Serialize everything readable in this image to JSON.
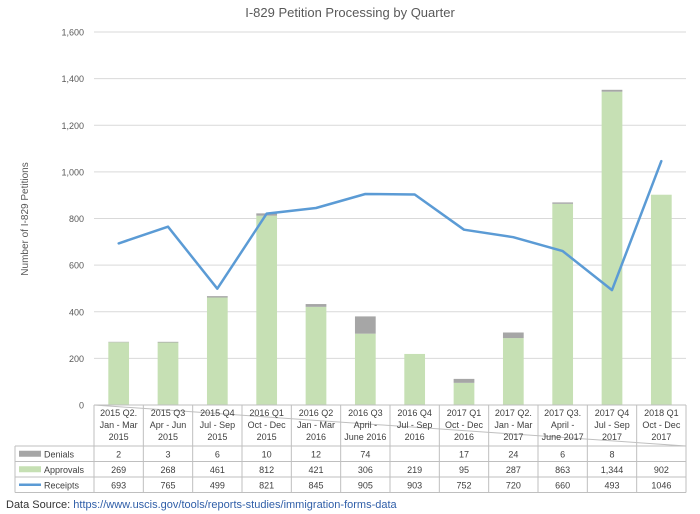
{
  "chart_data": {
    "type": "bar",
    "title": "I-829 Petition Processing by Quarter",
    "ylabel": "Number of I-829 Petitions",
    "xlabel": "",
    "ylim": [
      0,
      1600
    ],
    "yticks": [
      "0",
      "200",
      "400",
      "600",
      "800",
      "1,000",
      "1,200",
      "1,400",
      "1,600"
    ],
    "grid": true,
    "categories": [
      [
        "2015 Q2.",
        "Jan - Mar",
        "2015"
      ],
      [
        "2015 Q3",
        "Apr - Jun",
        "2015"
      ],
      [
        "2015 Q4",
        "Jul - Sep",
        "2015"
      ],
      [
        "2016 Q1",
        "Oct - Dec",
        "2015"
      ],
      [
        "2016 Q2",
        "Jan - Mar",
        "2016"
      ],
      [
        "2016 Q3",
        "April -",
        "June 2016"
      ],
      [
        "2016 Q4",
        "Jul - Sep",
        "2016"
      ],
      [
        "2017 Q1",
        "Oct - Dec",
        "2016"
      ],
      [
        "2017 Q2.",
        "Jan - Mar",
        "2017"
      ],
      [
        "2017 Q3.",
        "April -",
        "June 2017"
      ],
      [
        "2017 Q4",
        "Jul - Sep",
        "2017"
      ],
      [
        "2018 Q1",
        "Oct - Dec",
        "2017"
      ]
    ],
    "series": [
      {
        "name": "Denials",
        "kind": "bar-stack",
        "color": "#a6a6a6",
        "values": [
          2,
          3,
          6,
          10,
          12,
          74,
          null,
          17,
          24,
          6,
          8,
          null
        ],
        "labels": [
          "2",
          "3",
          "6",
          "10",
          "12",
          "74",
          "",
          "17",
          "24",
          "6",
          "8",
          ""
        ]
      },
      {
        "name": "Approvals",
        "kind": "bar",
        "color": "#c6e0b4",
        "values": [
          269,
          268,
          461,
          812,
          421,
          306,
          219,
          95,
          287,
          863,
          1344,
          902
        ],
        "labels": [
          "269",
          "268",
          "461",
          "812",
          "421",
          "306",
          "219",
          "95",
          "287",
          "863",
          "1,344",
          "902"
        ]
      },
      {
        "name": "Receipts",
        "kind": "line",
        "color": "#5b9bd5",
        "values": [
          693,
          765,
          499,
          821,
          845,
          905,
          903,
          752,
          720,
          660,
          493,
          1046
        ],
        "labels": [
          "693",
          "765",
          "499",
          "821",
          "845",
          "905",
          "903",
          "752",
          "720",
          "660",
          "493",
          "1046"
        ]
      }
    ]
  },
  "source": {
    "label": "Data Source:",
    "url": "https://www.uscis.gov/tools/reports-studies/immigration-forms-data"
  }
}
